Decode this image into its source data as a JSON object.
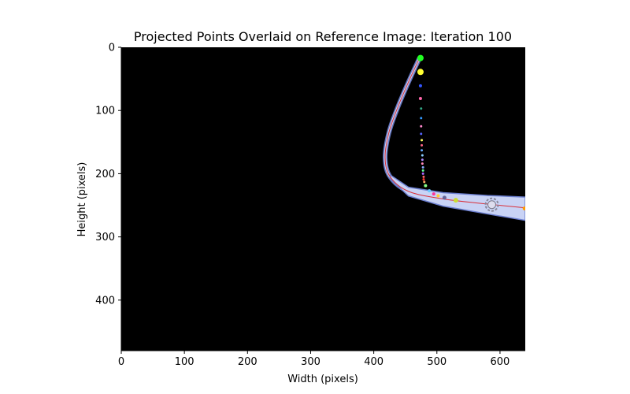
{
  "chart_data": {
    "type": "scatter",
    "title": "Projected Points Overlaid on Reference Image: Iteration 100",
    "xlabel": "Width (pixels)",
    "ylabel": "Height (pixels)",
    "xlim": [
      0,
      640
    ],
    "ylim": [
      480,
      0
    ],
    "xticks": [
      "0",
      "100",
      "200",
      "300",
      "400",
      "500",
      "600"
    ],
    "yticks": [
      "0",
      "100",
      "200",
      "300",
      "400"
    ],
    "background_color": "#000000",
    "grid": false,
    "legend": "none",
    "reference_image": {
      "tube_color": "#c9d3f5",
      "tube_edge_color": "#6c7fd0",
      "tube_centerline": [
        {
          "x": 472,
          "y": 18
        },
        {
          "x": 455,
          "y": 55
        },
        {
          "x": 438,
          "y": 95
        },
        {
          "x": 424,
          "y": 135
        },
        {
          "x": 418,
          "y": 175
        },
        {
          "x": 426,
          "y": 205
        },
        {
          "x": 455,
          "y": 228
        },
        {
          "x": 510,
          "y": 240
        },
        {
          "x": 580,
          "y": 248
        },
        {
          "x": 640,
          "y": 254
        }
      ]
    },
    "projected_curve": {
      "color": "#d9303a",
      "points": [
        {
          "x": 472,
          "y": 18
        },
        {
          "x": 455,
          "y": 55
        },
        {
          "x": 438,
          "y": 95
        },
        {
          "x": 424,
          "y": 135
        },
        {
          "x": 418,
          "y": 175
        },
        {
          "x": 426,
          "y": 205
        },
        {
          "x": 455,
          "y": 228
        },
        {
          "x": 510,
          "y": 240
        },
        {
          "x": 580,
          "y": 248
        },
        {
          "x": 640,
          "y": 254
        }
      ]
    },
    "points": [
      {
        "x": 474,
        "y": 17,
        "size": 7,
        "color": "#22ff22"
      },
      {
        "x": 474,
        "y": 39,
        "size": 7,
        "color": "#ffff33"
      },
      {
        "x": 474,
        "y": 61,
        "size": 3,
        "color": "#3355ff"
      },
      {
        "x": 474,
        "y": 81,
        "size": 3,
        "color": "#ff66aa"
      },
      {
        "x": 475,
        "y": 97,
        "size": 2,
        "color": "#33aa88"
      },
      {
        "x": 475,
        "y": 112,
        "size": 2,
        "color": "#3399ff"
      },
      {
        "x": 475,
        "y": 125,
        "size": 2,
        "color": "#ff88cc"
      },
      {
        "x": 475,
        "y": 137,
        "size": 2,
        "color": "#5566ff"
      },
      {
        "x": 476,
        "y": 147,
        "size": 2,
        "color": "#ffff66"
      },
      {
        "x": 476,
        "y": 155,
        "size": 2,
        "color": "#ff6688"
      },
      {
        "x": 476,
        "y": 163,
        "size": 2,
        "color": "#66aaff"
      },
      {
        "x": 477,
        "y": 171,
        "size": 2,
        "color": "#88ccff"
      },
      {
        "x": 477,
        "y": 178,
        "size": 2,
        "color": "#aa88ff"
      },
      {
        "x": 477,
        "y": 184,
        "size": 2,
        "color": "#ff88bb"
      },
      {
        "x": 478,
        "y": 190,
        "size": 2,
        "color": "#88aaff"
      },
      {
        "x": 478,
        "y": 195,
        "size": 2,
        "color": "#66ff99"
      },
      {
        "x": 478,
        "y": 200,
        "size": 2,
        "color": "#aa66ff"
      },
      {
        "x": 479,
        "y": 205,
        "size": 2,
        "color": "#ff6666"
      },
      {
        "x": 479,
        "y": 209,
        "size": 2,
        "color": "#ff3333"
      },
      {
        "x": 480,
        "y": 213,
        "size": 2,
        "color": "#ffaa66"
      },
      {
        "x": 482,
        "y": 219,
        "size": 3,
        "color": "#88ff88"
      },
      {
        "x": 488,
        "y": 227,
        "size": 3,
        "color": "#66ccff"
      },
      {
        "x": 495,
        "y": 232,
        "size": 3,
        "color": "#ff3399"
      },
      {
        "x": 502,
        "y": 235,
        "size": 3,
        "color": "#ffcc33"
      },
      {
        "x": 512,
        "y": 238,
        "size": 4,
        "color": "#666699"
      },
      {
        "x": 530,
        "y": 242,
        "size": 5,
        "color": "#ccdd33"
      },
      {
        "x": 587,
        "y": 249,
        "size": 8,
        "color": "#ddddee",
        "marker": "ring"
      },
      {
        "x": 639,
        "y": 255,
        "size": 4,
        "color": "#ff9900"
      }
    ]
  }
}
